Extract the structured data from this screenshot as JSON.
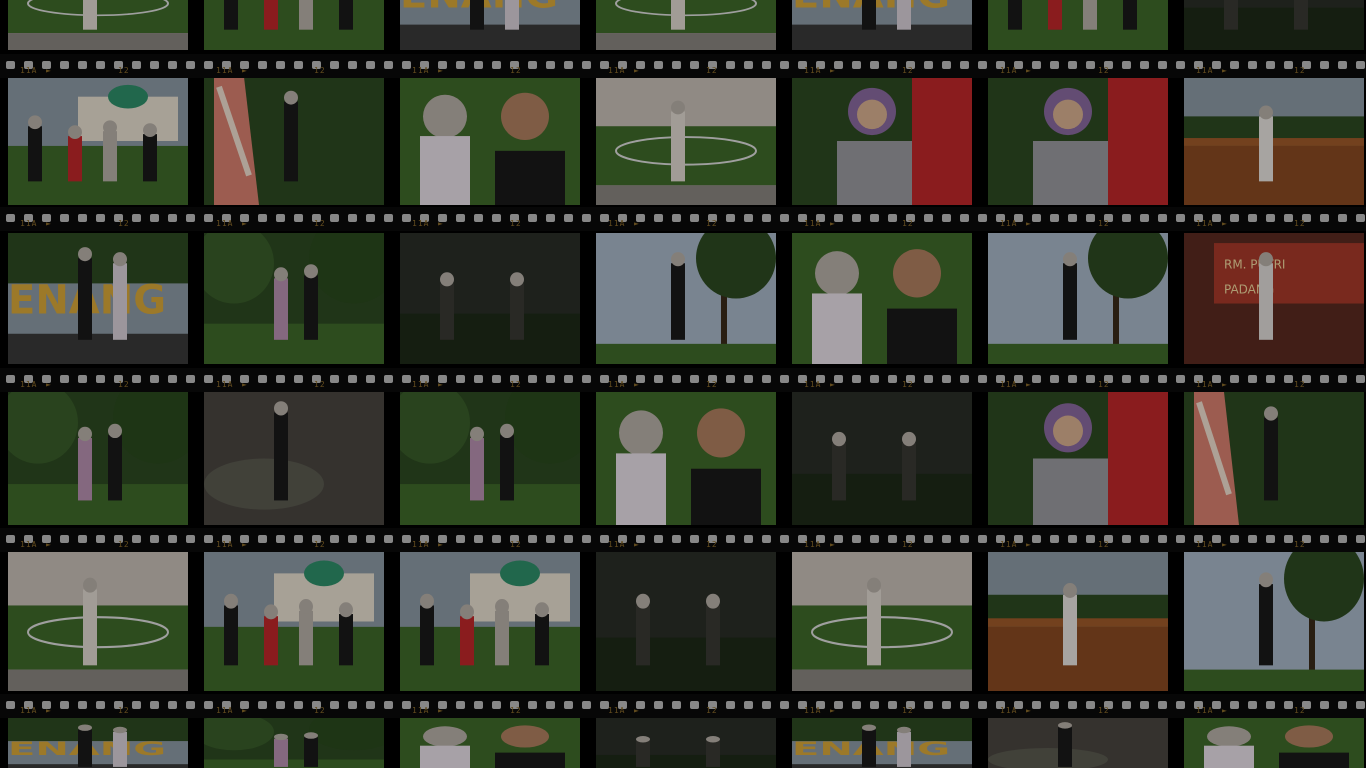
{
  "film_edge": {
    "marks": [
      "11A",
      "►",
      "12"
    ]
  },
  "palette": {
    "grass": "#3f6a2a",
    "sky": "#8c9aa5",
    "tree": "#2d4a22",
    "person_dark": "#1a1a1a",
    "hijab_light": "#b8b0a8",
    "accent_red": "#c0282a",
    "mosque_green": "#2f8f6a",
    "wood": "#8a4a22",
    "stone": "#4a4640"
  },
  "photos": [
    {
      "scene": "park"
    },
    {
      "scene": "mosque"
    },
    {
      "scene": "sign"
    },
    {
      "scene": "park"
    },
    {
      "scene": "sign"
    },
    {
      "scene": "mosque"
    },
    {
      "scene": "dark"
    },
    {
      "scene": "mosque"
    },
    {
      "scene": "statue"
    },
    {
      "scene": "selfie"
    },
    {
      "scene": "park"
    },
    {
      "scene": "group"
    },
    {
      "scene": "group"
    },
    {
      "scene": "bench"
    },
    {
      "scene": "sign"
    },
    {
      "scene": "garden"
    },
    {
      "scene": "dark"
    },
    {
      "scene": "tree"
    },
    {
      "scene": "selfie"
    },
    {
      "scene": "tree"
    },
    {
      "scene": "shop"
    },
    {
      "scene": "garden"
    },
    {
      "scene": "river"
    },
    {
      "scene": "garden"
    },
    {
      "scene": "selfie"
    },
    {
      "scene": "dark"
    },
    {
      "scene": "group"
    },
    {
      "scene": "statue"
    },
    {
      "scene": "park"
    },
    {
      "scene": "mosque"
    },
    {
      "scene": "mosque"
    },
    {
      "scene": "dark"
    },
    {
      "scene": "park"
    },
    {
      "scene": "bench"
    },
    {
      "scene": "tree"
    },
    {
      "scene": "sign"
    },
    {
      "scene": "garden"
    },
    {
      "scene": "selfie"
    },
    {
      "scene": "dark"
    },
    {
      "scene": "sign"
    },
    {
      "scene": "river"
    },
    {
      "scene": "selfie"
    }
  ]
}
